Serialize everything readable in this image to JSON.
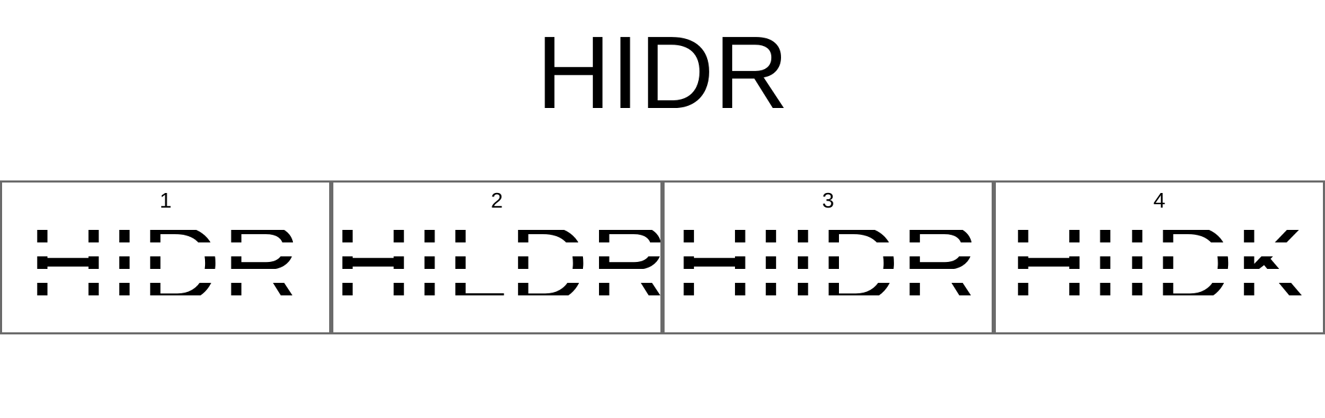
{
  "title": "HIDR",
  "panels": [
    {
      "number": "1",
      "word": "HIDR"
    },
    {
      "number": "2",
      "word": "HILDR"
    },
    {
      "number": "3",
      "word": "HIIDR"
    },
    {
      "number": "4",
      "word": "HIIDK"
    }
  ]
}
